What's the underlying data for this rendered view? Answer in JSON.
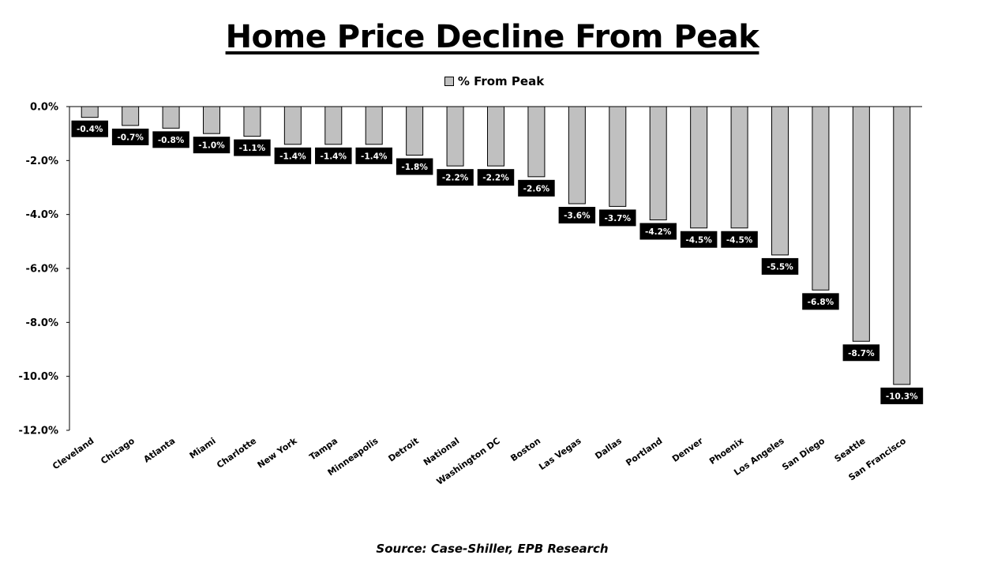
{
  "chart_data": {
    "type": "bar",
    "title": "Home Price Decline From Peak",
    "legend": "% From Peak",
    "legend_position": "top-center",
    "source": "Source: Case-Shiller, EPB Research",
    "categories": [
      "Cleveland",
      "Chicago",
      "Atlanta",
      "Miami",
      "Charlotte",
      "New York",
      "Tampa",
      "Minneapolis",
      "Detroit",
      "National",
      "Washington DC",
      "Boston",
      "Las Vegas",
      "Dallas",
      "Portland",
      "Denver",
      "Phoenix",
      "Los Angeles",
      "San Diego",
      "Seattle",
      "San Francisco"
    ],
    "series": [
      {
        "name": "% From Peak",
        "values": [
          -0.4,
          -0.7,
          -0.8,
          -1.0,
          -1.1,
          -1.4,
          -1.4,
          -1.4,
          -1.8,
          -2.2,
          -2.2,
          -2.6,
          -3.6,
          -3.7,
          -4.2,
          -4.5,
          -4.5,
          -5.5,
          -6.8,
          -8.7,
          -10.3
        ],
        "data_labels": [
          "-0.4%",
          "-0.7%",
          "-0.8%",
          "-1.0%",
          "-1.1%",
          "-1.4%",
          "-1.4%",
          "-1.4%",
          "-1.8%",
          "-2.2%",
          "-2.2%",
          "-2.6%",
          "-3.6%",
          "-3.7%",
          "-4.2%",
          "-4.5%",
          "-4.5%",
          "-5.5%",
          "-6.8%",
          "-8.7%",
          "-10.3%"
        ]
      }
    ],
    "ylim": [
      -12,
      0
    ],
    "yticks": [
      0,
      -2,
      -4,
      -6,
      -8,
      -10,
      -12
    ],
    "ytick_labels": [
      "0.0%",
      "-2.0%",
      "-4.0%",
      "-6.0%",
      "-8.0%",
      "-10.0%",
      "-12.0%"
    ],
    "grid": false,
    "colors": {
      "bar": "#c0c0c0",
      "bar_border": "#000000",
      "label_bg": "#000000",
      "label_text": "#ffffff"
    }
  }
}
